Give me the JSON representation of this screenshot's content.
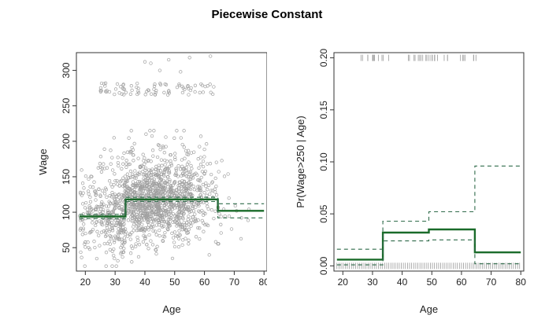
{
  "figure_title": "Piecewise Constant",
  "colors": {
    "fit": "#1a6b2a",
    "band": "#2f6b4a",
    "points": "#a0a0a0",
    "axis": "#333333"
  },
  "chart_data": [
    {
      "type": "scatter",
      "title": "",
      "xlabel": "Age",
      "ylabel": "Wage",
      "xlim": [
        17,
        81
      ],
      "ylim": [
        17,
        325
      ],
      "xticks": [
        "20",
        "30",
        "40",
        "50",
        "60",
        "70",
        "80"
      ],
      "yticks": [
        "50",
        "100",
        "150",
        "200",
        "250",
        "300"
      ],
      "grid": false,
      "series": [
        {
          "kind": "step-fit",
          "x": [
            18,
            33.5,
            33.5,
            49,
            49,
            64.5,
            64.5,
            80
          ],
          "y": [
            94,
            94,
            118,
            118,
            118,
            118,
            102,
            102
          ]
        },
        {
          "kind": "step-upper-band",
          "x": [
            18,
            33.5,
            33.5,
            49,
            49,
            64.5,
            64.5,
            80
          ],
          "y": [
            97,
            97,
            121,
            121,
            121,
            121,
            112,
            112
          ]
        },
        {
          "kind": "step-lower-band",
          "x": [
            18,
            33.5,
            33.5,
            49,
            49,
            64.5,
            64.5,
            80
          ],
          "y": [
            91,
            91,
            115,
            115,
            115,
            115,
            92,
            92
          ]
        }
      ],
      "high_earners": {
        "y_range": [
          265,
          282
        ],
        "x_range": [
          25,
          64
        ],
        "outliers": [
          [
            40,
            312
          ],
          [
            42,
            310
          ],
          [
            48,
            315
          ],
          [
            55,
            318
          ],
          [
            62,
            320
          ],
          [
            45,
            300
          ],
          [
            52,
            298
          ]
        ]
      }
    },
    {
      "type": "line",
      "title": "",
      "xlabel": "Age",
      "ylabel": "Pr(Wage>250 | Age)",
      "xlim": [
        17,
        81
      ],
      "ylim": [
        -0.005,
        0.205
      ],
      "xticks": [
        "20",
        "30",
        "40",
        "50",
        "60",
        "70",
        "80"
      ],
      "yticks": [
        "0.00",
        "0.05",
        "0.10",
        "0.15",
        "0.20"
      ],
      "grid": false,
      "series": [
        {
          "kind": "step-fit",
          "x": [
            18,
            33.5,
            33.5,
            49,
            49,
            64.5,
            64.5,
            80
          ],
          "y": [
            0.006,
            0.006,
            0.032,
            0.032,
            0.035,
            0.035,
            0.013,
            0.013
          ]
        },
        {
          "kind": "step-upper-band",
          "x": [
            18,
            33.5,
            33.5,
            49,
            49,
            64.5,
            64.5,
            80
          ],
          "y": [
            0.016,
            0.016,
            0.043,
            0.043,
            0.052,
            0.052,
            0.096,
            0.096
          ]
        },
        {
          "kind": "step-lower-band",
          "x": [
            18,
            33.5,
            33.5,
            49,
            49,
            64.5,
            64.5,
            80
          ],
          "y": [
            0.001,
            0.001,
            0.024,
            0.024,
            0.025,
            0.025,
            0.002,
            0.002
          ]
        }
      ],
      "rug_top": {
        "y": 0.2,
        "x_range": [
          26,
          65
        ]
      },
      "rug_bottom": {
        "y": 0.0,
        "x_range": [
          18,
          80
        ]
      }
    }
  ]
}
